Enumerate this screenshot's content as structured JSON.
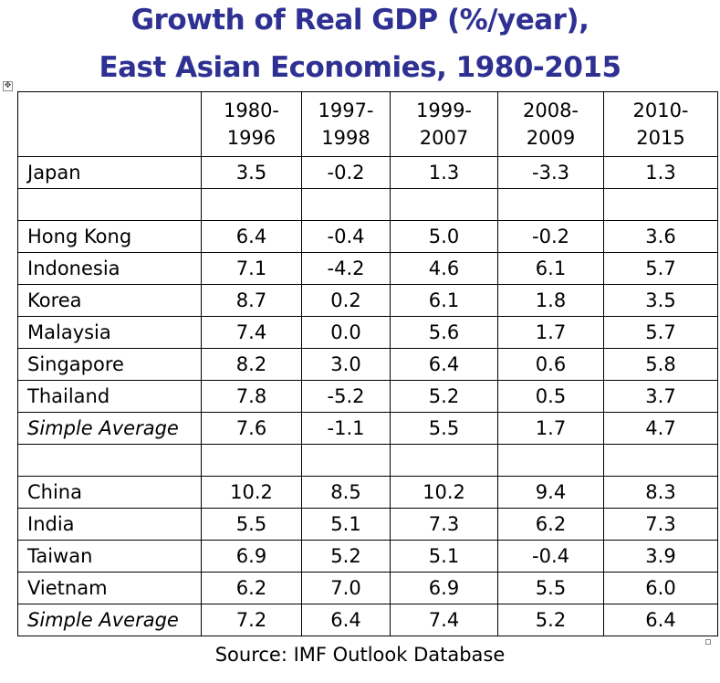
{
  "title_line1": "Growth of Real GDP (%/year),",
  "title_line2": "East Asian Economies, 1980-2015",
  "columns": [
    [
      "1980-",
      "1996"
    ],
    [
      "1997-",
      "1998"
    ],
    [
      "1999-",
      "2007"
    ],
    [
      "2008-",
      "2009"
    ],
    [
      "2010-",
      "2015"
    ]
  ],
  "rows": [
    {
      "label": "Japan",
      "italic": false,
      "values": [
        "3.5",
        "-0.2",
        "1.3",
        "-3.3",
        "1.3"
      ]
    },
    {
      "label": "",
      "italic": false,
      "values": [
        "",
        "",
        "",
        "",
        ""
      ]
    },
    {
      "label": "Hong Kong",
      "italic": false,
      "values": [
        "6.4",
        "-0.4",
        "5.0",
        "-0.2",
        "3.6"
      ]
    },
    {
      "label": "Indonesia",
      "italic": false,
      "values": [
        "7.1",
        "-4.2",
        "4.6",
        "6.1",
        "5.7"
      ]
    },
    {
      "label": "Korea",
      "italic": false,
      "values": [
        "8.7",
        "0.2",
        "6.1",
        "1.8",
        "3.5"
      ]
    },
    {
      "label": "Malaysia",
      "italic": false,
      "values": [
        "7.4",
        "0.0",
        "5.6",
        "1.7",
        "5.7"
      ]
    },
    {
      "label": "Singapore",
      "italic": false,
      "values": [
        "8.2",
        "3.0",
        "6.4",
        "0.6",
        "5.8"
      ]
    },
    {
      "label": "Thailand",
      "italic": false,
      "values": [
        "7.8",
        "-5.2",
        "5.2",
        "0.5",
        "3.7"
      ]
    },
    {
      "label": "Simple Average",
      "italic": true,
      "values": [
        "7.6",
        "-1.1",
        "5.5",
        "1.7",
        "4.7"
      ]
    },
    {
      "label": "",
      "italic": false,
      "values": [
        "",
        "",
        "",
        "",
        ""
      ]
    },
    {
      "label": "China",
      "italic": false,
      "values": [
        "10.2",
        "8.5",
        "10.2",
        "9.4",
        "8.3"
      ]
    },
    {
      "label": "India",
      "italic": false,
      "values": [
        "5.5",
        "5.1",
        "7.3",
        "6.2",
        "7.3"
      ]
    },
    {
      "label": "Taiwan",
      "italic": false,
      "values": [
        "6.9",
        "5.2",
        "5.1",
        "-0.4",
        "3.9"
      ]
    },
    {
      "label": "Vietnam",
      "italic": false,
      "values": [
        "6.2",
        "7.0",
        "6.9",
        "5.5",
        "6.0"
      ]
    },
    {
      "label": "Simple Average",
      "italic": true,
      "values": [
        "7.2",
        "6.4",
        "7.4",
        "5.2",
        "6.4"
      ]
    }
  ],
  "source": "Source: IMF Outlook Database",
  "colors": {
    "title": "#2e3192",
    "text": "#000000",
    "border": "#000000"
  },
  "icons": {
    "table_move_handle": "move-arrows-icon",
    "table_resize_handle": "resize-handle-icon"
  }
}
